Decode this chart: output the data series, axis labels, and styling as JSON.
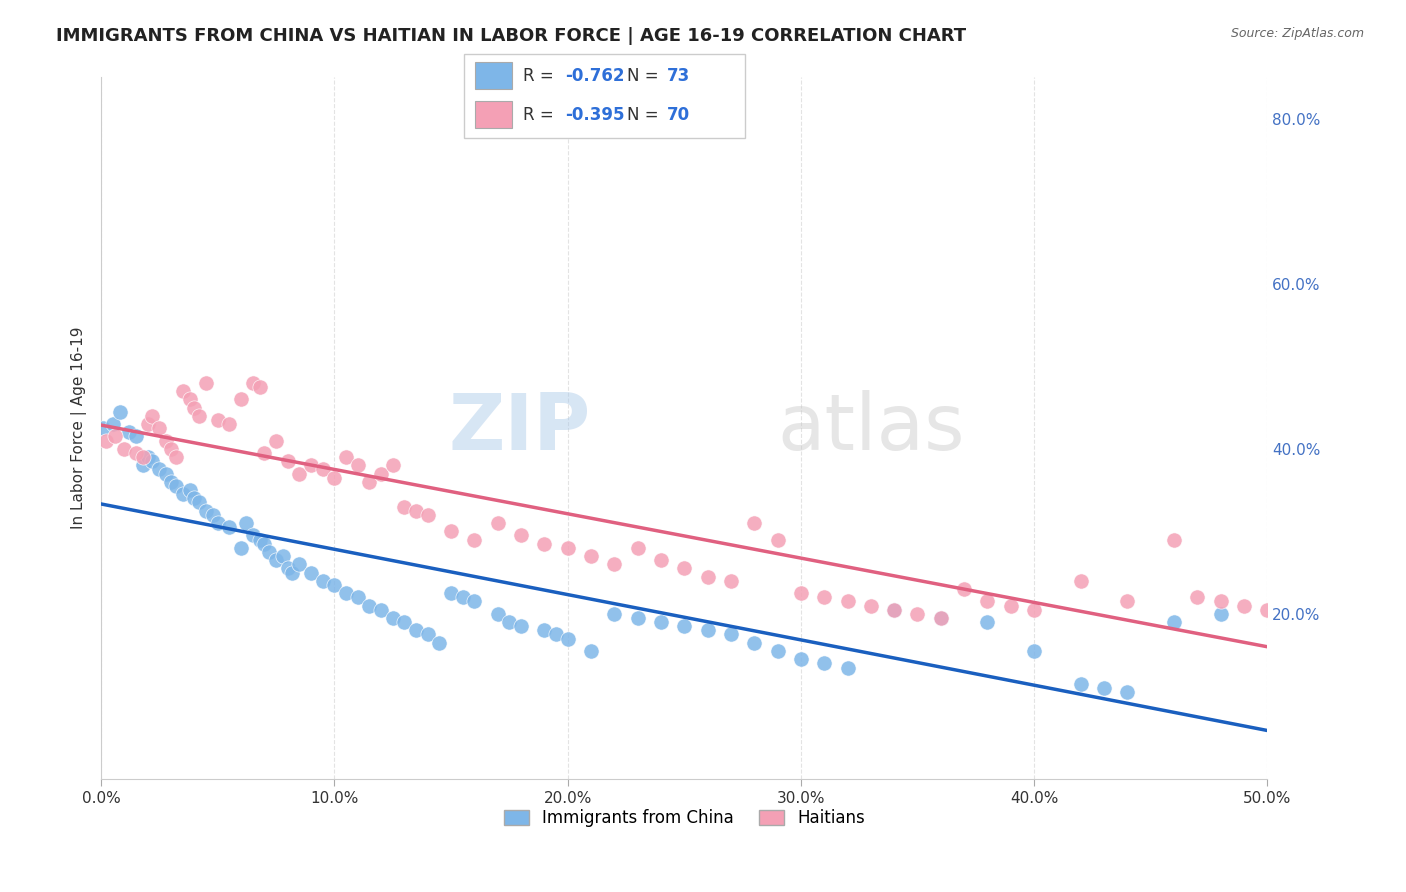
{
  "title": "IMMIGRANTS FROM CHINA VS HAITIAN IN LABOR FORCE | AGE 16-19 CORRELATION CHART",
  "source": "Source: ZipAtlas.com",
  "ylabel": "In Labor Force | Age 16-19",
  "xlim": [
    0.0,
    0.5
  ],
  "ylim": [
    0.0,
    0.85
  ],
  "xtick_vals": [
    0.0,
    0.1,
    0.2,
    0.3,
    0.4,
    0.5
  ],
  "xtick_labels": [
    "0.0%",
    "10.0%",
    "20.0%",
    "30.0%",
    "40.0%",
    "50.0%"
  ],
  "ytick_labels_right": [
    "20.0%",
    "40.0%",
    "60.0%",
    "80.0%"
  ],
  "ytick_vals_right": [
    0.2,
    0.4,
    0.6,
    0.8
  ],
  "china_color": "#7EB6E8",
  "haiti_color": "#F4A0B5",
  "china_line_color": "#1A5FBF",
  "haiti_line_color": "#E06080",
  "china_R": -0.762,
  "china_N": 73,
  "haiti_R": -0.395,
  "haiti_N": 70,
  "legend_label_china": "Immigrants from China",
  "legend_label_haiti": "Haitians",
  "watermark_zip": "ZIP",
  "watermark_atlas": "atlas",
  "background_color": "#ffffff",
  "grid_color": "#dddddd",
  "china_x": [
    0.001,
    0.005,
    0.008,
    0.012,
    0.015,
    0.018,
    0.02,
    0.022,
    0.025,
    0.028,
    0.03,
    0.032,
    0.035,
    0.038,
    0.04,
    0.042,
    0.045,
    0.048,
    0.05,
    0.055,
    0.06,
    0.062,
    0.065,
    0.068,
    0.07,
    0.072,
    0.075,
    0.078,
    0.08,
    0.082,
    0.085,
    0.09,
    0.095,
    0.1,
    0.105,
    0.11,
    0.115,
    0.12,
    0.125,
    0.13,
    0.135,
    0.14,
    0.145,
    0.15,
    0.155,
    0.16,
    0.17,
    0.175,
    0.18,
    0.19,
    0.195,
    0.2,
    0.21,
    0.22,
    0.23,
    0.24,
    0.25,
    0.26,
    0.27,
    0.28,
    0.29,
    0.3,
    0.31,
    0.32,
    0.34,
    0.36,
    0.38,
    0.4,
    0.42,
    0.43,
    0.44,
    0.46,
    0.48
  ],
  "china_y": [
    0.425,
    0.43,
    0.445,
    0.42,
    0.415,
    0.38,
    0.39,
    0.385,
    0.375,
    0.37,
    0.36,
    0.355,
    0.345,
    0.35,
    0.34,
    0.335,
    0.325,
    0.32,
    0.31,
    0.305,
    0.28,
    0.31,
    0.295,
    0.29,
    0.285,
    0.275,
    0.265,
    0.27,
    0.255,
    0.25,
    0.26,
    0.25,
    0.24,
    0.235,
    0.225,
    0.22,
    0.21,
    0.205,
    0.195,
    0.19,
    0.18,
    0.175,
    0.165,
    0.225,
    0.22,
    0.215,
    0.2,
    0.19,
    0.185,
    0.18,
    0.175,
    0.17,
    0.155,
    0.2,
    0.195,
    0.19,
    0.185,
    0.18,
    0.175,
    0.165,
    0.155,
    0.145,
    0.14,
    0.135,
    0.205,
    0.195,
    0.19,
    0.155,
    0.115,
    0.11,
    0.105,
    0.19,
    0.2
  ],
  "haiti_x": [
    0.002,
    0.006,
    0.01,
    0.015,
    0.018,
    0.02,
    0.022,
    0.025,
    0.028,
    0.03,
    0.032,
    0.035,
    0.038,
    0.04,
    0.042,
    0.045,
    0.05,
    0.055,
    0.06,
    0.065,
    0.068,
    0.07,
    0.075,
    0.08,
    0.085,
    0.09,
    0.095,
    0.1,
    0.105,
    0.11,
    0.115,
    0.12,
    0.125,
    0.13,
    0.135,
    0.14,
    0.15,
    0.16,
    0.17,
    0.18,
    0.19,
    0.2,
    0.21,
    0.22,
    0.23,
    0.24,
    0.25,
    0.26,
    0.27,
    0.28,
    0.29,
    0.3,
    0.31,
    0.32,
    0.33,
    0.34,
    0.35,
    0.36,
    0.37,
    0.38,
    0.39,
    0.4,
    0.42,
    0.44,
    0.46,
    0.47,
    0.48,
    0.49,
    0.5,
    0.51
  ],
  "haiti_y": [
    0.41,
    0.415,
    0.4,
    0.395,
    0.39,
    0.43,
    0.44,
    0.425,
    0.41,
    0.4,
    0.39,
    0.47,
    0.46,
    0.45,
    0.44,
    0.48,
    0.435,
    0.43,
    0.46,
    0.48,
    0.475,
    0.395,
    0.41,
    0.385,
    0.37,
    0.38,
    0.375,
    0.365,
    0.39,
    0.38,
    0.36,
    0.37,
    0.38,
    0.33,
    0.325,
    0.32,
    0.3,
    0.29,
    0.31,
    0.295,
    0.285,
    0.28,
    0.27,
    0.26,
    0.28,
    0.265,
    0.255,
    0.245,
    0.24,
    0.31,
    0.29,
    0.225,
    0.22,
    0.215,
    0.21,
    0.205,
    0.2,
    0.195,
    0.23,
    0.215,
    0.21,
    0.205,
    0.24,
    0.215,
    0.29,
    0.22,
    0.215,
    0.21,
    0.205,
    0.2
  ]
}
